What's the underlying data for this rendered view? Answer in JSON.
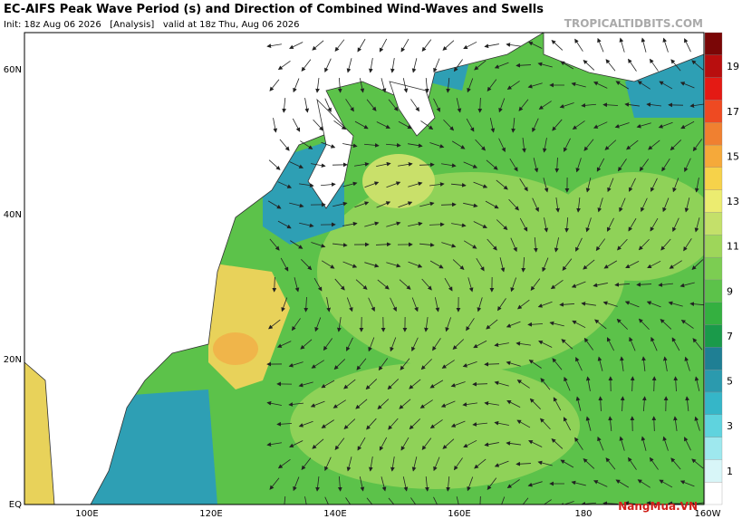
{
  "header": {
    "title": "EC-AIFS Peak Wave Period (s) and Direction of Combined Wind-Waves and Swells",
    "init": "Init: 18z Aug 06 2026   [Analysis]   valid at 18z Thu, Aug 06 2026",
    "site": "TROPICALTIDBITS.COM"
  },
  "map": {
    "lat_labels": [
      "60N",
      "40N",
      "20N",
      "EQ"
    ],
    "lon_labels": [
      "100E",
      "120E",
      "140E",
      "160E",
      "180",
      "160W"
    ]
  },
  "colorbar": {
    "labels": [
      "1",
      "3",
      "5",
      "7",
      "9",
      "11",
      "13",
      "15",
      "17",
      "19"
    ]
  },
  "watermark": "NangMua.VN"
}
